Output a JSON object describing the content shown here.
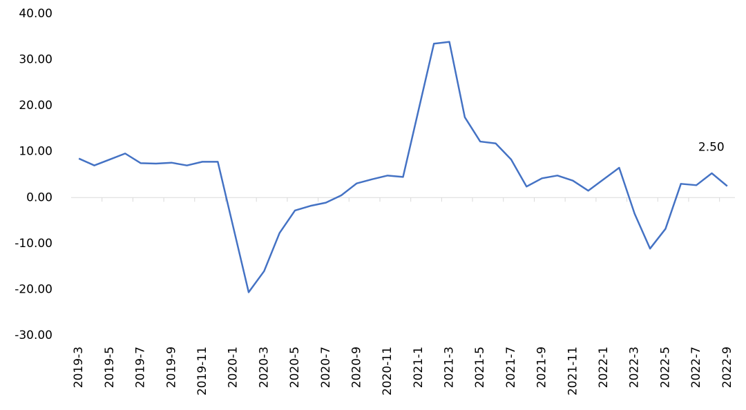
{
  "chart_data": {
    "type": "line",
    "categories": [
      "2019-3",
      null,
      "2019-5",
      null,
      "2019-7",
      null,
      "2019-9",
      null,
      "2019-11",
      null,
      "2020-1",
      null,
      "2020-3",
      null,
      "2020-5",
      null,
      "2020-7",
      null,
      "2020-9",
      null,
      "2020-11",
      null,
      "2021-1",
      null,
      "2021-3",
      null,
      "2021-5",
      null,
      "2021-7",
      null,
      "2021-9",
      null,
      "2021-11",
      null,
      "2022-1",
      null,
      "2022-3",
      null,
      "2022-5",
      null,
      "2022-7",
      null,
      "2022-9"
    ],
    "series": [
      {
        "color": "#4472c4",
        "values": [
          8.5,
          7.0,
          8.3,
          9.6,
          7.5,
          7.4,
          7.6,
          7.0,
          7.8,
          7.8,
          -6.4,
          -20.6,
          -16.0,
          -7.7,
          -2.8,
          -1.8,
          -1.1,
          0.5,
          3.1,
          4.0,
          4.8,
          4.5,
          19.0,
          33.5,
          33.9,
          17.5,
          12.2,
          11.8,
          8.3,
          2.4,
          4.2,
          4.8,
          3.7,
          1.5,
          4.0,
          6.5,
          -3.5,
          -11.1,
          -6.8,
          3.0,
          2.7,
          5.3,
          2.5
        ],
        "value_labels": [
          null,
          null,
          null,
          null,
          null,
          null,
          null,
          null,
          null,
          null,
          null,
          null,
          null,
          null,
          null,
          null,
          null,
          null,
          null,
          null,
          null,
          null,
          null,
          null,
          null,
          null,
          null,
          null,
          null,
          null,
          null,
          null,
          null,
          null,
          null,
          null,
          null,
          null,
          null,
          null,
          null,
          null,
          "2.50"
        ]
      }
    ],
    "ylim": [
      -30,
      40
    ],
    "yticks": [
      {
        "value": -30,
        "label": "-30.00"
      },
      {
        "value": -20,
        "label": "-20.00"
      },
      {
        "value": -10,
        "label": "-10.00"
      },
      {
        "value": 0,
        "label": "0.00"
      },
      {
        "value": 10,
        "label": "10.00"
      },
      {
        "value": 20,
        "label": "20.00"
      },
      {
        "value": 30,
        "label": "30.00"
      },
      {
        "value": 40,
        "label": "40.00"
      }
    ],
    "grid": false
  }
}
